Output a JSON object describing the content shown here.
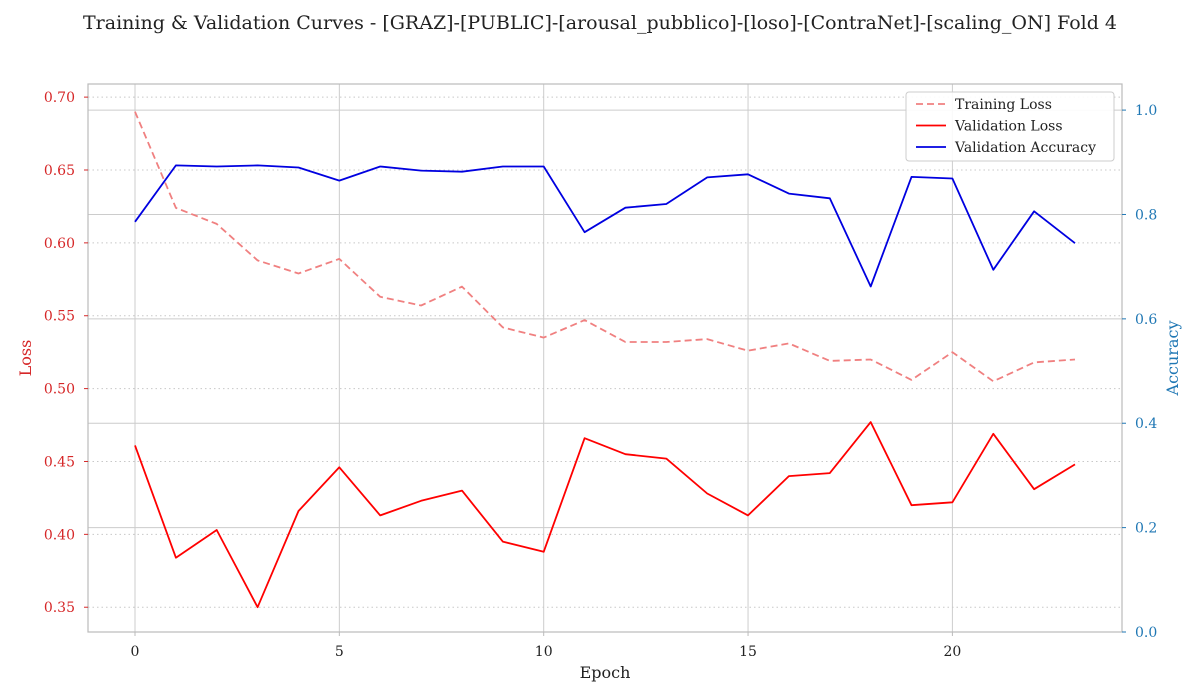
{
  "chart_data": {
    "type": "line",
    "title": "Training & Validation Curves - [GRAZ]-[PUBLIC]-[arousal_pubblico]-[loso]-[ContraNet]-[scaling_ON] Fold 4",
    "xlabel": "Epoch",
    "ylabel_left": "Loss",
    "ylabel_right": "Accuracy",
    "xlim": [
      -1.15,
      24.15
    ],
    "ylim_left": [
      0.333,
      0.709
    ],
    "ylim_right": [
      0.0,
      1.05
    ],
    "x_ticks": [
      0,
      5,
      10,
      15,
      20
    ],
    "x_tick_labels": [
      "0",
      "5",
      "10",
      "15",
      "20"
    ],
    "y_left_ticks": [
      0.35,
      0.4,
      0.45,
      0.5,
      0.55,
      0.6,
      0.65,
      0.7
    ],
    "y_left_tick_labels": [
      "0.35",
      "0.40",
      "0.45",
      "0.50",
      "0.55",
      "0.60",
      "0.65",
      "0.70"
    ],
    "y_right_ticks": [
      0.0,
      0.2,
      0.4,
      0.6,
      0.8,
      1.0
    ],
    "y_right_tick_labels": [
      "0.0",
      "0.2",
      "0.4",
      "0.6",
      "0.8",
      "1.0"
    ],
    "grid": true,
    "legend_position": "top-right",
    "x": [
      0,
      1,
      2,
      3,
      4,
      5,
      6,
      7,
      8,
      9,
      10,
      11,
      12,
      13,
      14,
      15,
      16,
      17,
      18,
      19,
      20,
      21,
      22,
      23
    ],
    "series": [
      {
        "name": "Training Loss",
        "axis": "left",
        "style": "dashed",
        "color": "#f08080",
        "values": [
          0.69,
          0.624,
          0.613,
          0.588,
          0.579,
          0.589,
          0.563,
          0.557,
          0.57,
          0.542,
          0.535,
          0.547,
          0.532,
          0.532,
          0.534,
          0.526,
          0.531,
          0.519,
          0.52,
          0.506,
          0.525,
          0.505,
          0.518,
          0.52
        ]
      },
      {
        "name": "Validation Loss",
        "axis": "left",
        "style": "solid",
        "color": "#ff0000",
        "values": [
          0.461,
          0.384,
          0.403,
          0.35,
          0.416,
          0.446,
          0.413,
          0.423,
          0.43,
          0.395,
          0.388,
          0.466,
          0.455,
          0.452,
          0.428,
          0.413,
          0.44,
          0.442,
          0.477,
          0.42,
          0.422,
          0.469,
          0.431,
          0.448
        ]
      },
      {
        "name": "Validation Accuracy",
        "axis": "right",
        "style": "solid",
        "color": "#0000e0",
        "values": [
          0.786,
          0.894,
          0.892,
          0.894,
          0.89,
          0.865,
          0.892,
          0.884,
          0.882,
          0.892,
          0.892,
          0.766,
          0.813,
          0.82,
          0.871,
          0.877,
          0.84,
          0.831,
          0.662,
          0.872,
          0.869,
          0.694,
          0.806,
          0.745
        ]
      }
    ],
    "colors": {
      "left_axis": "#d62728",
      "right_axis": "#1f77b4",
      "grid": "#cccccc",
      "spine": "#bbbbbb",
      "text": "#222222"
    }
  }
}
